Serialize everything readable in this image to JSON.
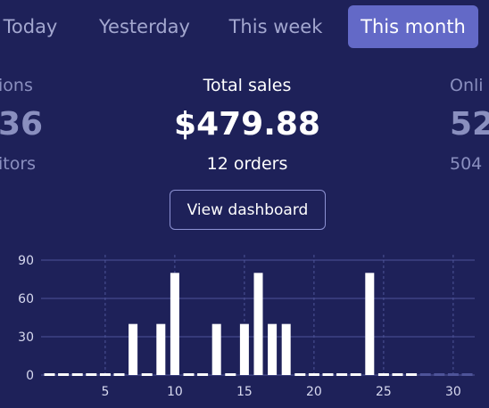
{
  "tabs": [
    {
      "label": "Today",
      "active": false
    },
    {
      "label": "Yesterday",
      "active": false
    },
    {
      "label": "This week",
      "active": false
    },
    {
      "label": "This month",
      "active": true
    }
  ],
  "stats": {
    "left": {
      "label": "ions",
      "value": "36",
      "sub": "itors"
    },
    "center": {
      "label": "Total sales",
      "value": "$479.88",
      "sub": "12 orders"
    },
    "right": {
      "label": "Onli",
      "value": "52",
      "sub": "504"
    }
  },
  "view_dashboard_label": "View dashboard",
  "colors": {
    "background": "#1e2159",
    "active_tab": "#6369c7",
    "bar": "#ffffff",
    "gridline": "#4e5499"
  },
  "chart_data": {
    "type": "bar",
    "x": [
      1,
      2,
      3,
      4,
      5,
      6,
      7,
      8,
      9,
      10,
      11,
      12,
      13,
      14,
      15,
      16,
      17,
      18,
      19,
      20,
      21,
      22,
      23,
      24,
      25,
      26,
      27,
      28,
      29,
      30,
      31
    ],
    "values": [
      0,
      0,
      0,
      0,
      0,
      0,
      40,
      0,
      40,
      80,
      0,
      0,
      40,
      0,
      40,
      80,
      40,
      40,
      0,
      0,
      0,
      0,
      0,
      80,
      0,
      0,
      0,
      0,
      0,
      0,
      0
    ],
    "future_days_from": 28,
    "y_ticks": [
      0,
      30,
      60,
      90
    ],
    "x_ticks": [
      5,
      10,
      15,
      20,
      25,
      30
    ],
    "ylim": [
      0,
      90
    ],
    "grid": true
  }
}
